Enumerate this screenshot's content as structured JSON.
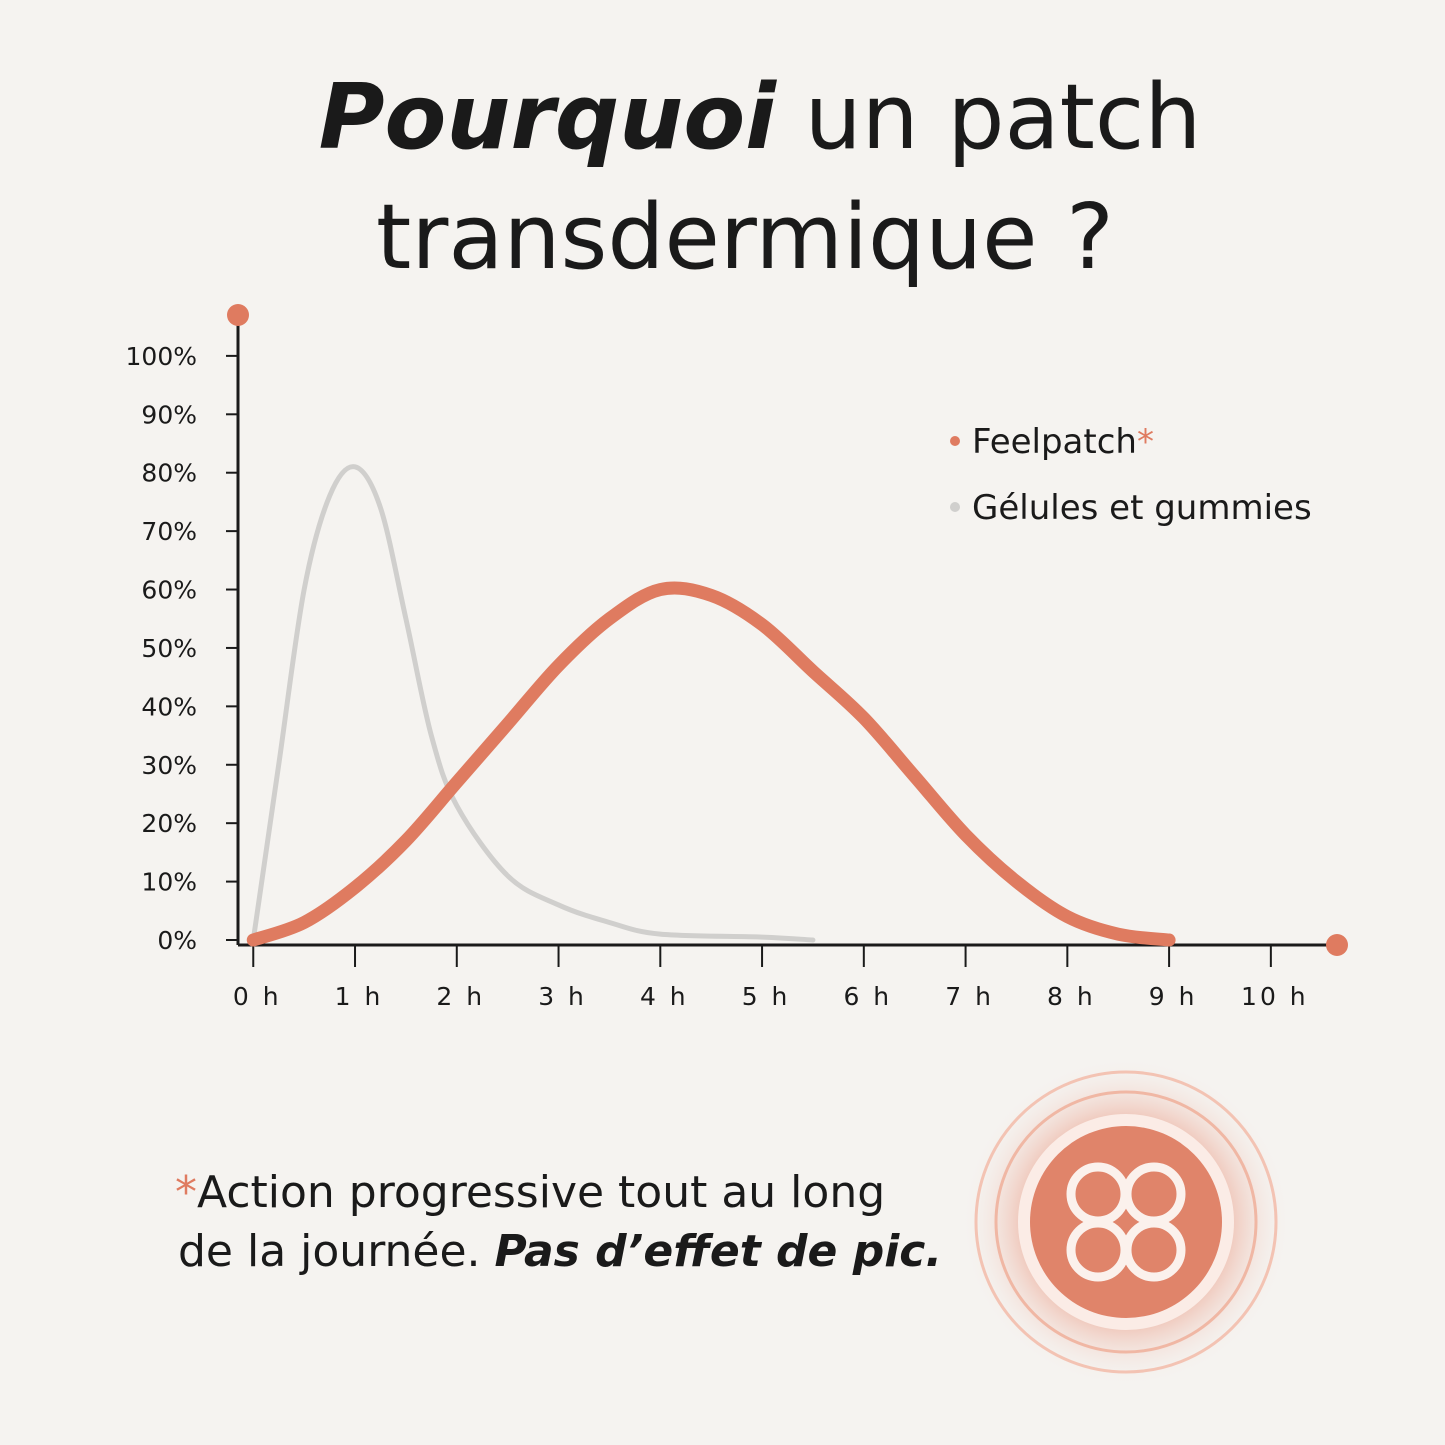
{
  "chart_data": {
    "type": "line",
    "title": {
      "emphasis": "Pourquoi",
      "line1": "un patch",
      "line2": "transdermique ?"
    },
    "xlim": [
      -0.15,
      10.65
    ],
    "ylim": [
      0,
      107
    ],
    "xticks": [
      {
        "value": 0,
        "label": "0 h"
      },
      {
        "value": 1,
        "label": "1 h"
      },
      {
        "value": 2,
        "label": "2 h"
      },
      {
        "value": 3,
        "label": "3 h"
      },
      {
        "value": 4,
        "label": "4 h"
      },
      {
        "value": 5,
        "label": "5 h"
      },
      {
        "value": 6,
        "label": "6 h"
      },
      {
        "value": 7,
        "label": "7 h"
      },
      {
        "value": 8,
        "label": "8 h"
      },
      {
        "value": 9,
        "label": "9 h"
      },
      {
        "value": 10,
        "label": "10 h"
      }
    ],
    "yticks": [
      {
        "value": 0,
        "label": "0%"
      },
      {
        "value": 10,
        "label": "10%"
      },
      {
        "value": 20,
        "label": "20%"
      },
      {
        "value": 30,
        "label": "30%"
      },
      {
        "value": 40,
        "label": "40%"
      },
      {
        "value": 50,
        "label": "50%"
      },
      {
        "value": 60,
        "label": "60%"
      },
      {
        "value": 70,
        "label": "70%"
      },
      {
        "value": 80,
        "label": "80%"
      },
      {
        "value": 90,
        "label": "90%"
      },
      {
        "value": 100,
        "label": "100%"
      }
    ],
    "series": [
      {
        "name": "Feelpatch",
        "marker": "*",
        "color": "#df7b60",
        "x": [
          0,
          0.5,
          1,
          1.5,
          2,
          2.5,
          3,
          3.5,
          4,
          4.5,
          5,
          5.5,
          6,
          6.5,
          7,
          7.5,
          8,
          8.5,
          9
        ],
        "values": [
          0,
          3,
          9,
          17,
          27,
          37,
          47,
          55,
          60,
          59,
          54,
          46,
          38,
          28,
          18,
          10,
          4,
          1,
          0
        ]
      },
      {
        "name": "Gélules et gummies",
        "color": "#d0cfcd",
        "x": [
          0,
          0.25,
          0.5,
          0.75,
          1,
          1.25,
          1.5,
          1.75,
          2,
          2.5,
          3,
          3.5,
          4,
          5,
          5.5
        ],
        "values": [
          0,
          30,
          60,
          76,
          81,
          74,
          55,
          35,
          23,
          11,
          6,
          3,
          1,
          0.5,
          0
        ]
      }
    ],
    "footnote": {
      "marker": "*",
      "line1": "Action progressive tout au long",
      "line2": "de la journée.",
      "emphasis": "Pas d’effet de pic."
    }
  }
}
